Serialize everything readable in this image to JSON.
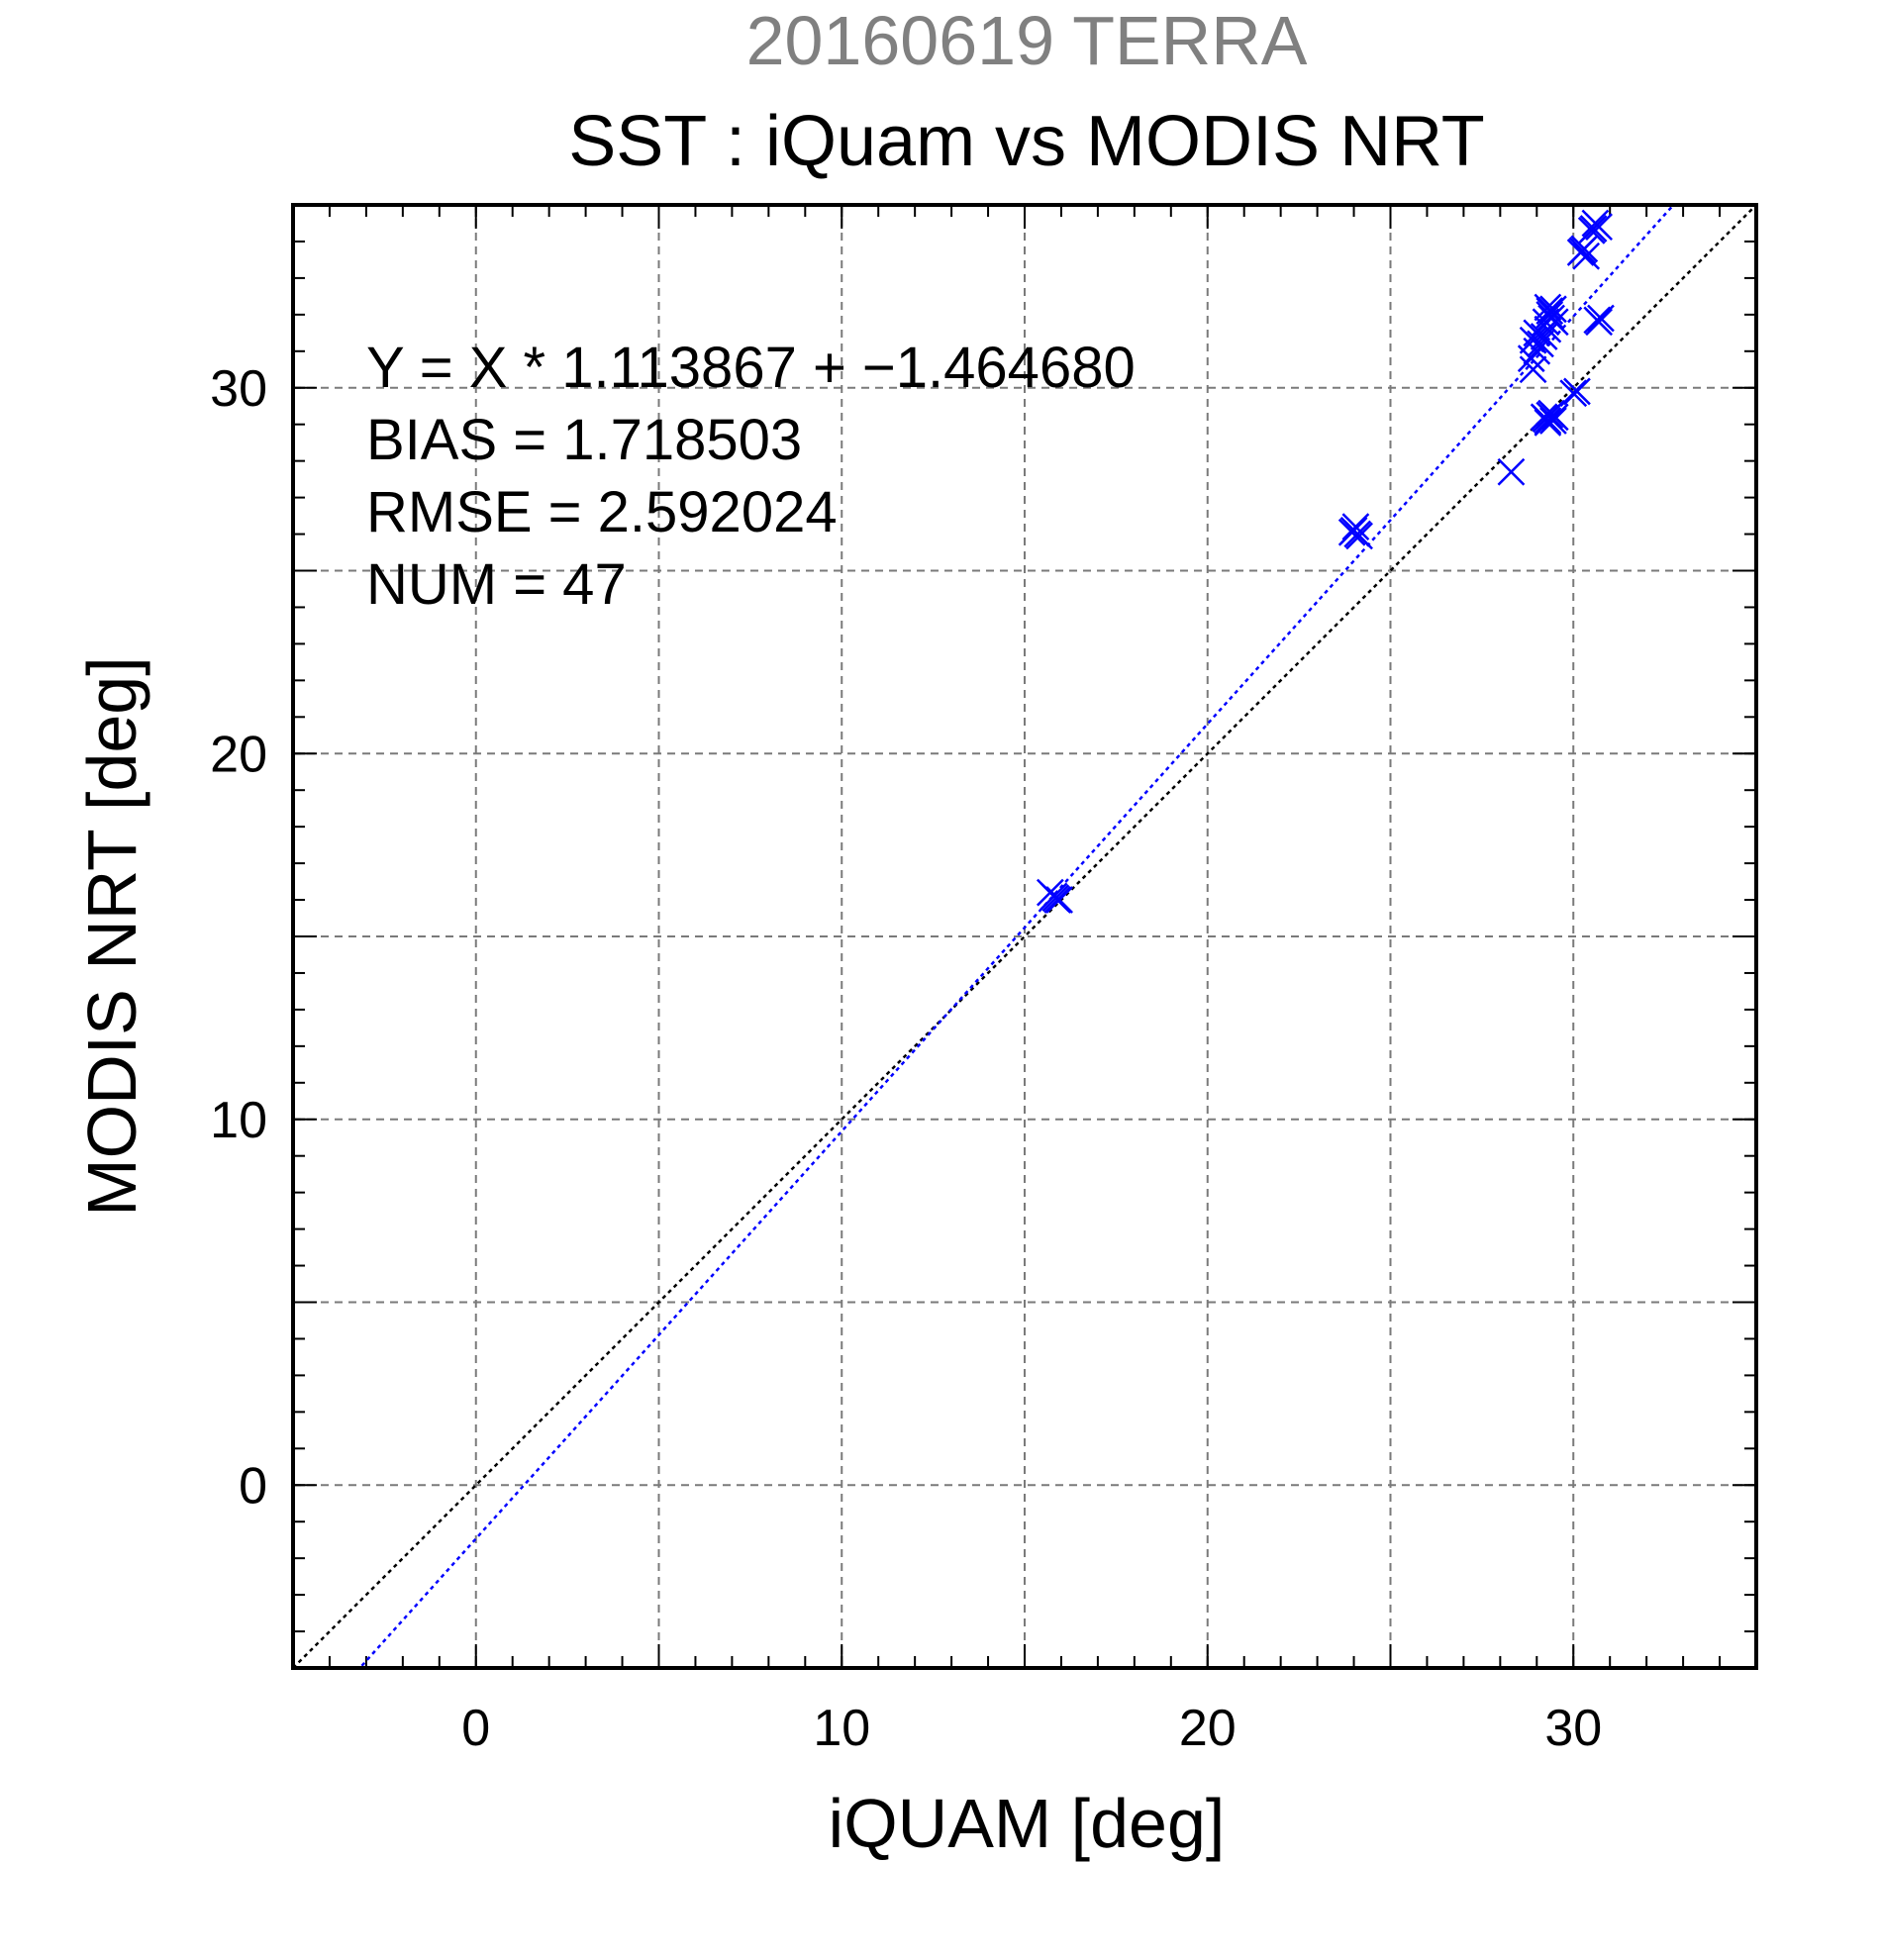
{
  "header": {
    "date_title": "20160619 TERRA",
    "main_title": "SST : iQuam vs MODIS NRT"
  },
  "stats": {
    "regression_text": "Y = X * 1.113867 + −1.464680",
    "bias_text": "BIAS = 1.718503",
    "rmse_text": "RMSE = 2.592024",
    "num_text": "NUM = 47"
  },
  "chart_data": {
    "type": "scatter",
    "title": "SST : iQuam vs MODIS NRT",
    "subtitle": "20160619 TERRA",
    "xlabel": "iQUAM [deg]",
    "ylabel": "MODIS NRT [deg]",
    "xlim": [
      -5,
      35
    ],
    "ylim": [
      -5,
      35
    ],
    "x_ticks": [
      0,
      10,
      20,
      30
    ],
    "y_ticks": [
      0,
      10,
      20,
      30
    ],
    "x_minor_step": 1,
    "y_minor_step": 1,
    "grid": true,
    "grid_step": 5,
    "series": [
      {
        "marker": "x",
        "color": "#0000ff",
        "points": [
          [
            15.8,
            16.1
          ],
          [
            15.9,
            16.0
          ],
          [
            15.7,
            16.2
          ],
          [
            15.85,
            16.05
          ],
          [
            15.95,
            16.0
          ],
          [
            24.0,
            26.1
          ],
          [
            24.1,
            26.0
          ],
          [
            24.05,
            26.2
          ],
          [
            24.15,
            25.95
          ],
          [
            23.95,
            26.05
          ],
          [
            28.3,
            27.7
          ],
          [
            28.9,
            30.5
          ],
          [
            28.85,
            30.8
          ],
          [
            29.0,
            31.0
          ],
          [
            28.9,
            31.3
          ],
          [
            29.0,
            31.5
          ],
          [
            29.1,
            31.2
          ],
          [
            29.2,
            31.4
          ],
          [
            29.3,
            31.6
          ],
          [
            29.25,
            31.8
          ],
          [
            29.35,
            32.0
          ],
          [
            29.3,
            32.2
          ],
          [
            29.4,
            31.9
          ],
          [
            29.5,
            31.8
          ],
          [
            29.35,
            32.1
          ],
          [
            29.45,
            32.15
          ],
          [
            29.2,
            29.2
          ],
          [
            29.3,
            29.1
          ],
          [
            29.4,
            29.3
          ],
          [
            29.25,
            29.15
          ],
          [
            29.35,
            29.25
          ],
          [
            29.45,
            29.1
          ],
          [
            29.5,
            29.2
          ],
          [
            29.3,
            29.05
          ],
          [
            30.1,
            29.9
          ],
          [
            30.0,
            29.85
          ],
          [
            30.2,
            33.7
          ],
          [
            30.3,
            33.8
          ],
          [
            30.35,
            33.6
          ],
          [
            30.25,
            33.75
          ],
          [
            30.5,
            34.3
          ],
          [
            30.6,
            34.5
          ],
          [
            30.7,
            34.4
          ],
          [
            30.55,
            34.35
          ],
          [
            30.7,
            31.8
          ],
          [
            30.75,
            31.9
          ],
          [
            30.65,
            31.85
          ]
        ]
      }
    ],
    "reference_lines": [
      {
        "kind": "identity",
        "slope": 1.0,
        "intercept": 0.0,
        "color": "#000000"
      },
      {
        "kind": "regression",
        "slope": 1.113867,
        "intercept": -1.46468,
        "color": "#0000ff"
      }
    ]
  }
}
